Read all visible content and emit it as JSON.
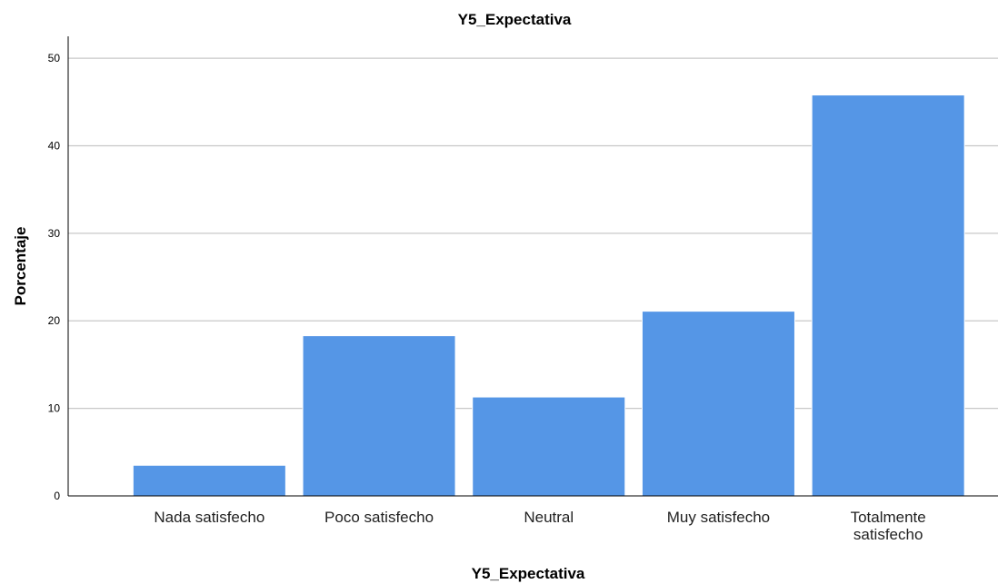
{
  "chart_data": {
    "type": "bar",
    "title": "Y5_Expectativa",
    "xlabel": "Y5_Expectativa",
    "ylabel": "Porcentaje",
    "categories": [
      "Nada satisfecho",
      "Poco satisfecho",
      "Neutral",
      "Muy satisfecho",
      "Totalmente satisfecho"
    ],
    "category_lines": [
      [
        "Nada satisfecho"
      ],
      [
        "Poco satisfecho"
      ],
      [
        "Neutral"
      ],
      [
        "Muy satisfecho"
      ],
      [
        "Totalmente",
        "satisfecho"
      ]
    ],
    "values": [
      3.5,
      18.3,
      11.3,
      21.1,
      45.8
    ],
    "ylim": [
      0,
      52.5
    ],
    "yticks": [
      0,
      10,
      20,
      30,
      40,
      50
    ],
    "grid": true,
    "bar_color": "#5596e6"
  }
}
